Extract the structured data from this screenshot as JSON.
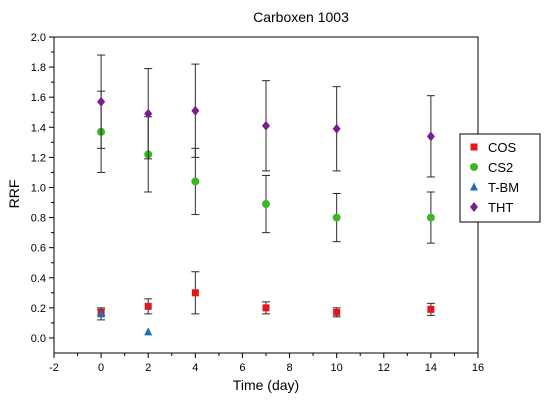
{
  "chart_data": {
    "type": "scatter",
    "title": "Carboxen 1003",
    "xlabel": "Time (day)",
    "ylabel": "RRF",
    "xlim": [
      -2,
      16
    ],
    "ylim": [
      -0.1,
      2.0
    ],
    "xticks": [
      -2,
      0,
      2,
      4,
      6,
      8,
      10,
      12,
      14,
      16
    ],
    "yticks": [
      0.0,
      0.2,
      0.4,
      0.6,
      0.8,
      1.0,
      1.2,
      1.4,
      1.6,
      1.8,
      2.0
    ],
    "grid": false,
    "legend_position": "right",
    "series": [
      {
        "name": "COS",
        "marker": "square",
        "color": "#e8141c",
        "x": [
          0,
          2,
          4,
          7,
          10,
          14
        ],
        "y": [
          0.17,
          0.21,
          0.3,
          0.2,
          0.17,
          0.19
        ],
        "err": [
          0.02,
          0.05,
          0.14,
          0.04,
          0.03,
          0.04
        ]
      },
      {
        "name": "CS2",
        "marker": "circle",
        "color": "#3db626",
        "x": [
          0,
          2,
          4,
          7,
          10,
          14
        ],
        "y": [
          1.37,
          1.22,
          1.04,
          0.89,
          0.8,
          0.8
        ],
        "err": [
          0.27,
          0.25,
          0.22,
          0.19,
          0.16,
          0.17
        ]
      },
      {
        "name": "T-BM",
        "marker": "triangle",
        "color": "#1f6fb5",
        "x": [
          0,
          2
        ],
        "y": [
          0.16,
          0.04
        ],
        "err": [
          0.04,
          0.0
        ]
      },
      {
        "name": "THT",
        "marker": "diamond",
        "color": "#7b1c91",
        "x": [
          0,
          2,
          4,
          7,
          10,
          14
        ],
        "y": [
          1.57,
          1.49,
          1.51,
          1.41,
          1.39,
          1.34
        ],
        "err": [
          0.31,
          0.3,
          0.31,
          0.3,
          0.28,
          0.27
        ]
      }
    ]
  }
}
